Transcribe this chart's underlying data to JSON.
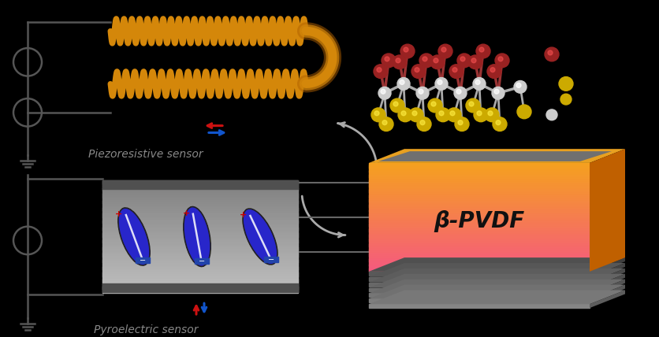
{
  "bg_color": "#000000",
  "circuit_color": "#555555",
  "coil_color": "#D4870A",
  "arrow_red": "#CC1111",
  "arrow_blue": "#1155CC",
  "text_color": "#888888",
  "pvdf_label": "β-PVDF",
  "piezo_label": "Piezoresistive sensor",
  "pyro_label": "Pyroelectric sensor",
  "mol_backbone_color": "#BBBBBB",
  "mol_c_color": "#CCCCCC",
  "mol_o_color": "#AA2222",
  "mol_f_color": "#CCAA00",
  "mol_h_color": "#DDDDDD"
}
